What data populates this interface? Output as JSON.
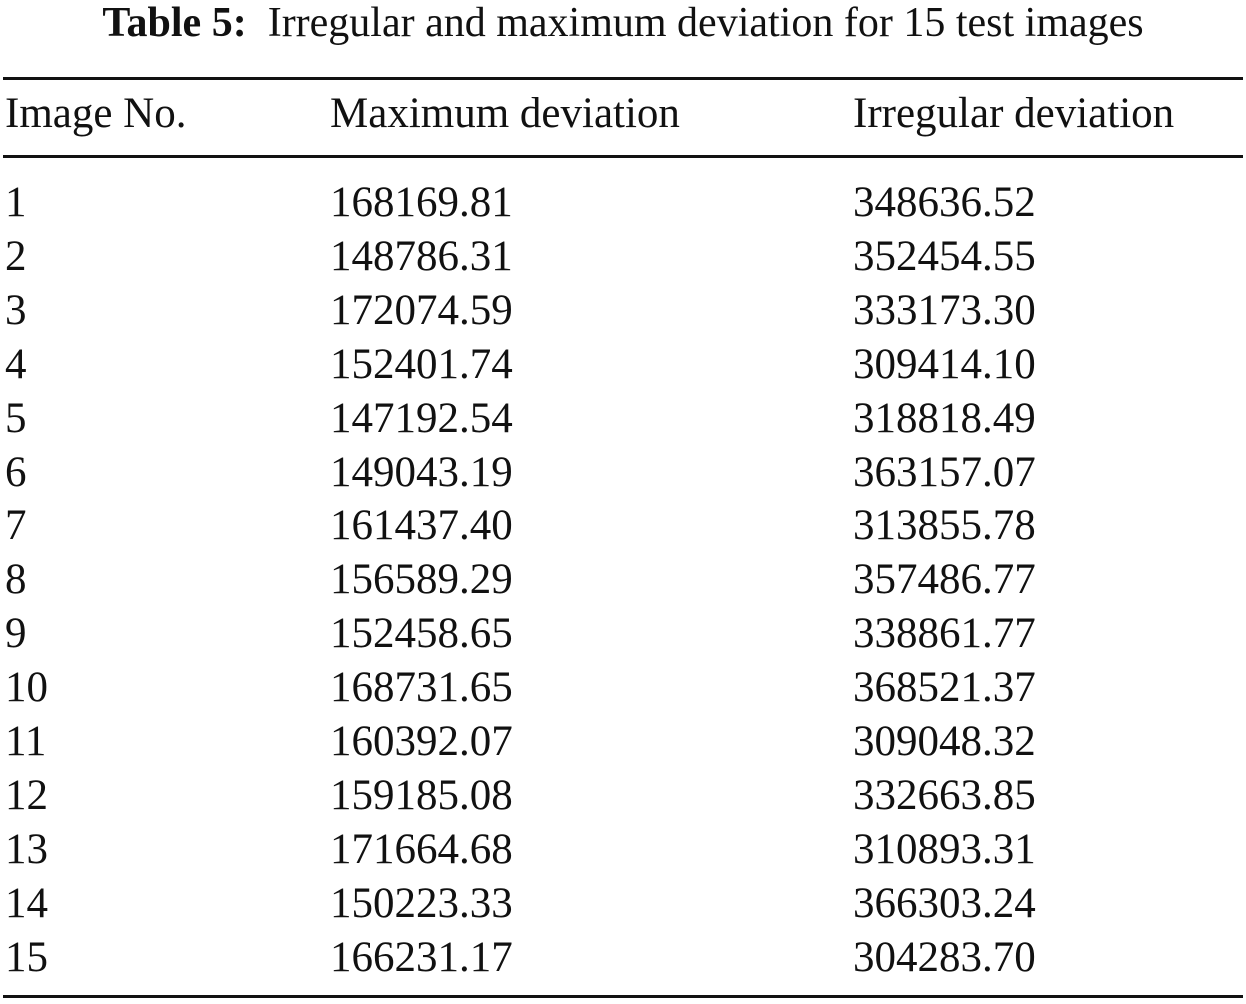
{
  "caption": {
    "label": "Table 5:",
    "text": "Irregular and maximum deviation for 15 test images"
  },
  "table": {
    "columns": [
      "Image No.",
      "Maximum deviation",
      "Irregular deviation"
    ],
    "rows": [
      [
        "1",
        "168169.81",
        "348636.52"
      ],
      [
        "2",
        "148786.31",
        "352454.55"
      ],
      [
        "3",
        "172074.59",
        "333173.30"
      ],
      [
        "4",
        "152401.74",
        "309414.10"
      ],
      [
        "5",
        "147192.54",
        "318818.49"
      ],
      [
        "6",
        "149043.19",
        "363157.07"
      ],
      [
        "7",
        "161437.40",
        "313855.78"
      ],
      [
        "8",
        "156589.29",
        "357486.77"
      ],
      [
        "9",
        "152458.65",
        "338861.77"
      ],
      [
        "10",
        "168731.65",
        "368521.37"
      ],
      [
        "11",
        "160392.07",
        "309048.32"
      ],
      [
        "12",
        "159185.08",
        "332663.85"
      ],
      [
        "13",
        "171664.68",
        "310893.31"
      ],
      [
        "14",
        "150223.33",
        "366303.24"
      ],
      [
        "15",
        "166231.17",
        "304283.70"
      ]
    ]
  }
}
